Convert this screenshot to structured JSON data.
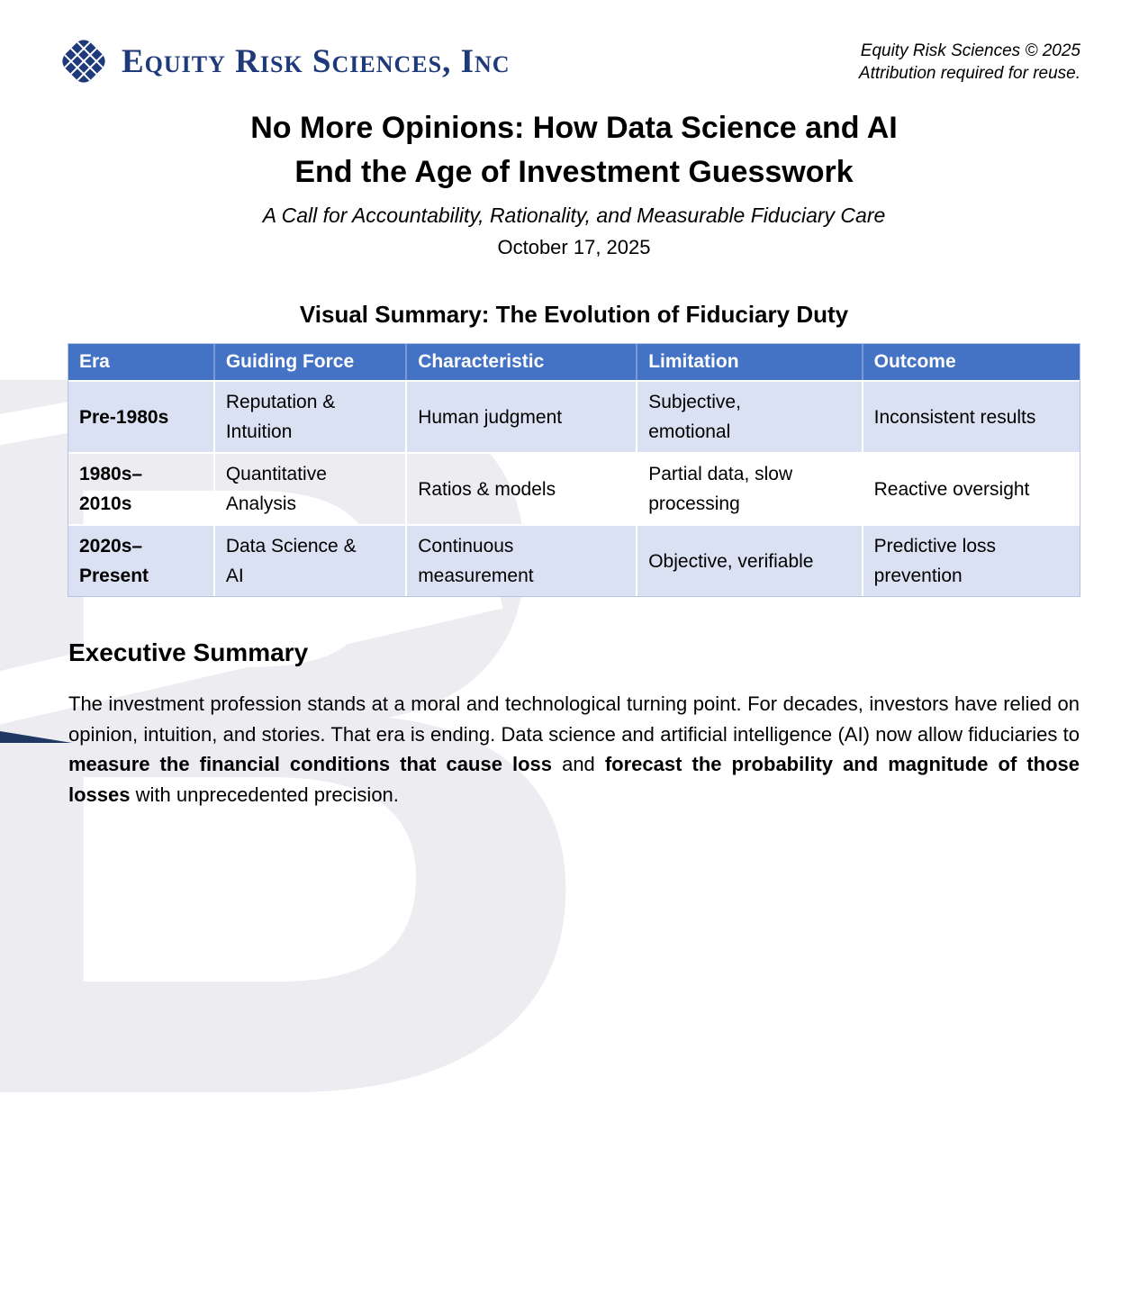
{
  "header": {
    "logo": {
      "company": "Equity Risk Sciences, Inc",
      "icon": "knot-logo-icon"
    },
    "copyright_line1": "Equity Risk Sciences © 2025",
    "copyright_line2": "Attribution required for reuse."
  },
  "title": {
    "line1": "No More Opinions: How Data Science and AI",
    "line2": "End the Age of Investment Guesswork",
    "subtitle": "A Call for Accountability, Rationality, and Measurable Fiduciary Care",
    "date": "October 17, 2025"
  },
  "visual_summary": {
    "heading": "Visual Summary: The Evolution of Fiduciary Duty",
    "table": {
      "columns": [
        "Era",
        "Guiding Force",
        "Characteristic",
        "Limitation",
        "Outcome"
      ],
      "rows": [
        [
          "Pre-1980s",
          "Reputation &\nIntuition",
          "Human judgment",
          "Subjective,\nemotional",
          "Inconsistent results"
        ],
        [
          "1980s–\n2010s",
          "Quantitative\nAnalysis",
          "Ratios & models",
          "Partial data, slow\nprocessing",
          "Reactive oversight"
        ],
        [
          "2020s–\nPresent",
          "Data Science &\nAI",
          "Continuous\nmeasurement",
          "Objective, verifiable",
          "Predictive loss\nprevention"
        ]
      ]
    }
  },
  "executive_summary": {
    "heading": "Executive Summary",
    "paragraph_parts": [
      {
        "text": "The investment profession stands at a moral and technological turning point. For decades, investors have relied on opinion, intuition, and stories. That era is ending. Data science and artificial intelligence (AI) now allow fiduciaries to ",
        "bold": false
      },
      {
        "text": "measure the financial conditions that cause loss",
        "bold": true
      },
      {
        "text": " and ",
        "bold": false
      },
      {
        "text": "forecast the probability and magnitude of those losses",
        "bold": true
      },
      {
        "text": " with unprecedented precision.",
        "bold": false
      }
    ]
  },
  "colors": {
    "table_header_blue": "#4472C4",
    "table_row_blue": "#D9E1F2",
    "logo_navy": "#1F3A7A",
    "corner_accent_navy": "#203864",
    "watermark_gray": "#ECECF1"
  },
  "watermark_glyph": "B"
}
